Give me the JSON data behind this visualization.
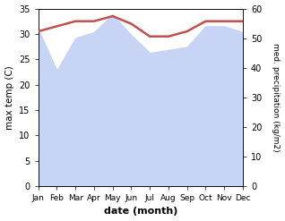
{
  "months": [
    "Jan",
    "Feb",
    "Mar",
    "Apr",
    "May",
    "Jun",
    "Jul",
    "Aug",
    "Sep",
    "Oct",
    "Nov",
    "Dec"
  ],
  "month_x": [
    0,
    1,
    2,
    3,
    4,
    5,
    6,
    7,
    8,
    9,
    10,
    11
  ],
  "max_temp": [
    30.5,
    31.5,
    32.5,
    32.5,
    33.5,
    32.0,
    29.5,
    29.5,
    30.5,
    32.5,
    32.5,
    32.5
  ],
  "precipitation": [
    53.0,
    39.0,
    50.0,
    52.0,
    58.0,
    51.0,
    45.0,
    46.0,
    47.0,
    54.0,
    54.0,
    52.0
  ],
  "temp_ylim": [
    0,
    35
  ],
  "precip_ylim": [
    0,
    60
  ],
  "precip_color_fill": "#c8d4f5",
  "temp_line_color": "#c0504d",
  "background_color": "#ffffff",
  "xlabel": "date (month)",
  "ylabel_left": "max temp (C)",
  "ylabel_right": "med. precipitation (kg/m2)",
  "temp_yticks": [
    0,
    5,
    10,
    15,
    20,
    25,
    30,
    35
  ],
  "precip_yticks": [
    0,
    10,
    20,
    30,
    40,
    50,
    60
  ]
}
